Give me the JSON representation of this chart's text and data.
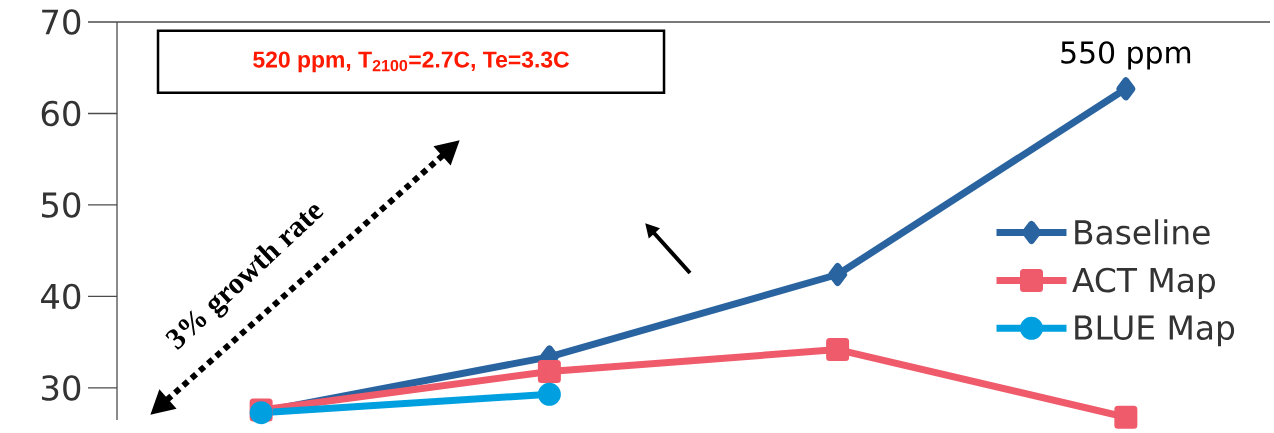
{
  "chart_data": {
    "type": "line",
    "categories": [
      null,
      null,
      null,
      null
    ],
    "series": [
      {
        "name": "Baseline",
        "color": "#2a64a0",
        "marker": "diamond",
        "values": [
          27.4,
          33.4,
          42.4,
          62.7
        ]
      },
      {
        "name": "ACT Map",
        "color": "#ef5b6b",
        "marker": "square",
        "values": [
          27.6,
          31.8,
          34.2,
          26.8
        ]
      },
      {
        "name": "BLUE Map",
        "color": "#00a0e0",
        "marker": "circle",
        "values": [
          27.3,
          29.3,
          null,
          null
        ]
      }
    ],
    "ylim": [
      26.5,
      70
    ],
    "yticks": [
      30,
      40,
      50,
      60,
      70
    ],
    "legend": "right",
    "grid": false,
    "line_style": "solid",
    "annotations": [
      "550 ppm",
      "3% growth rate",
      "520 ppm, T$_{2100}$=2.7C, Te=3.3C"
    ]
  }
}
